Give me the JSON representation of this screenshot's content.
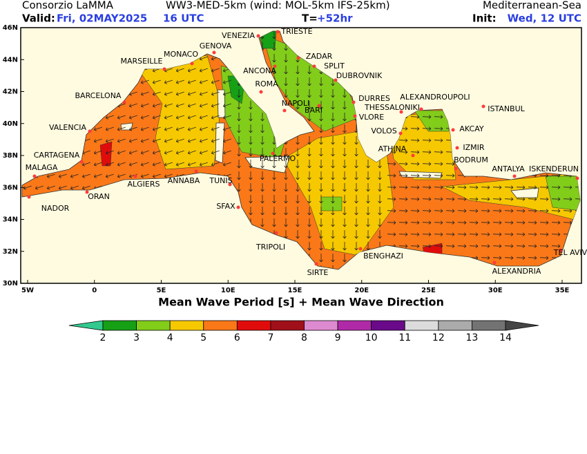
{
  "header": {
    "org": "Consorzio LaMMA",
    "model": "WW3-MED-5km (wind: MOL-5km IFS-25km)",
    "region": "Mediterranean-Sea",
    "valid_label": "Valid:",
    "valid_date": "Fri, 02MAY2025",
    "valid_hour": "16 UTC",
    "step_label": "T=",
    "step_value": "+52hr",
    "init_label": "Init:",
    "init_value": "Wed, 12 UTC"
  },
  "map": {
    "lat_ticks": [
      "46N",
      "44N",
      "42N",
      "40N",
      "38N",
      "36N",
      "34N",
      "32N",
      "30N"
    ],
    "lon_ticks": [
      "5W",
      "0",
      "5E",
      "10E",
      "15E",
      "20E",
      "25E",
      "30E",
      "35E"
    ],
    "cities": [
      "VENEZIA",
      "TRIESTE",
      "GENOVA",
      "MONACO",
      "MARSEILLE",
      "ZADAR",
      "SPLIT",
      "ANCONA",
      "DUBROVNIK",
      "ROMA",
      "BARCELONA",
      "DURRES",
      "ALEXANDROUPOLI",
      "NAPOLI",
      "THESSALONIKI",
      "BARI",
      "ISTANBUL",
      "VALENCIA",
      "VLORE",
      "VOLOS",
      "AKCAY",
      "IZMIR",
      "ATHINA",
      "CARTAGENA",
      "PALERMO",
      "BODRUM",
      "MALAGA",
      "ANTALYA",
      "ISKENDERUN",
      "ALGIERS",
      "ANNABA",
      "TUNIS",
      "ORAN",
      "NADOR",
      "SFAX",
      "TEL AVIV",
      "TRIPOLI",
      "BENGHAZI",
      "ALEXANDRIA",
      "SIRTE"
    ],
    "xlabel": "Mean Wave Period [s] + Mean Wave Direction"
  },
  "colorbar": {
    "ticks": [
      2,
      3,
      4,
      5,
      6,
      7,
      8,
      9,
      10,
      11,
      12,
      13,
      14
    ],
    "colors": [
      "#33c98f",
      "#16a016",
      "#82cc1a",
      "#f6c800",
      "#fa7818",
      "#e00c0c",
      "#a0101a",
      "#de8ad0",
      "#b02aa8",
      "#6a0a8a",
      "#dcdcdc",
      "#ababab",
      "#737373",
      "#454545"
    ]
  }
}
